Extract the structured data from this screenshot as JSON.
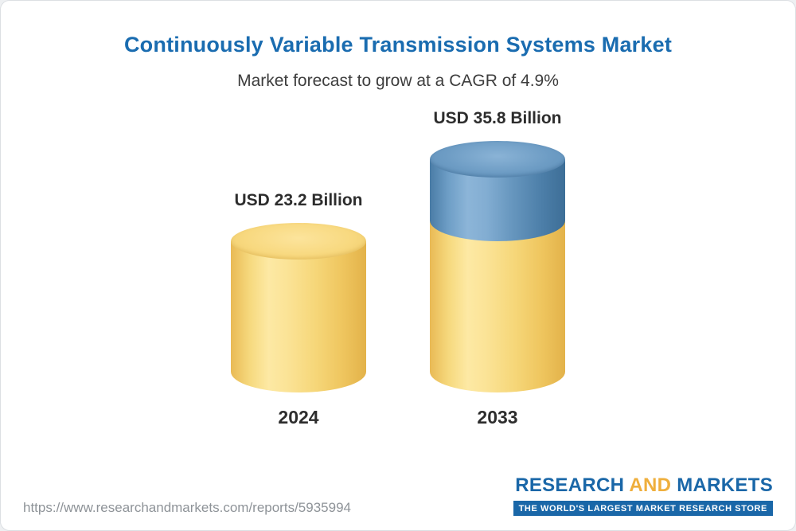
{
  "header": {
    "title": "Continuously Variable Transmission Systems Market",
    "subtitle": "Market forecast to grow at a CAGR of 4.9%"
  },
  "chart_data": {
    "type": "bar",
    "categories": [
      "2024",
      "2033"
    ],
    "values": [
      23.2,
      35.8
    ],
    "value_labels": [
      "USD 23.2 Billion",
      "USD 35.8 Billion"
    ],
    "title": "Continuously Variable Transmission Systems Market",
    "subtitle": "Market forecast to grow at a CAGR of 4.9%",
    "unit": "USD Billion",
    "legend_position": "none",
    "grid": false,
    "colors": {
      "base_segment": "#f6d77a",
      "growth_segment": "#6595bd"
    }
  },
  "footer": {
    "url": "https://www.researchandmarkets.com/reports/5935994",
    "logo": {
      "word1": "RESEARCH",
      "word2": "AND",
      "word3": "MARKETS",
      "tagline": "THE WORLD'S LARGEST MARKET RESEARCH STORE"
    }
  }
}
